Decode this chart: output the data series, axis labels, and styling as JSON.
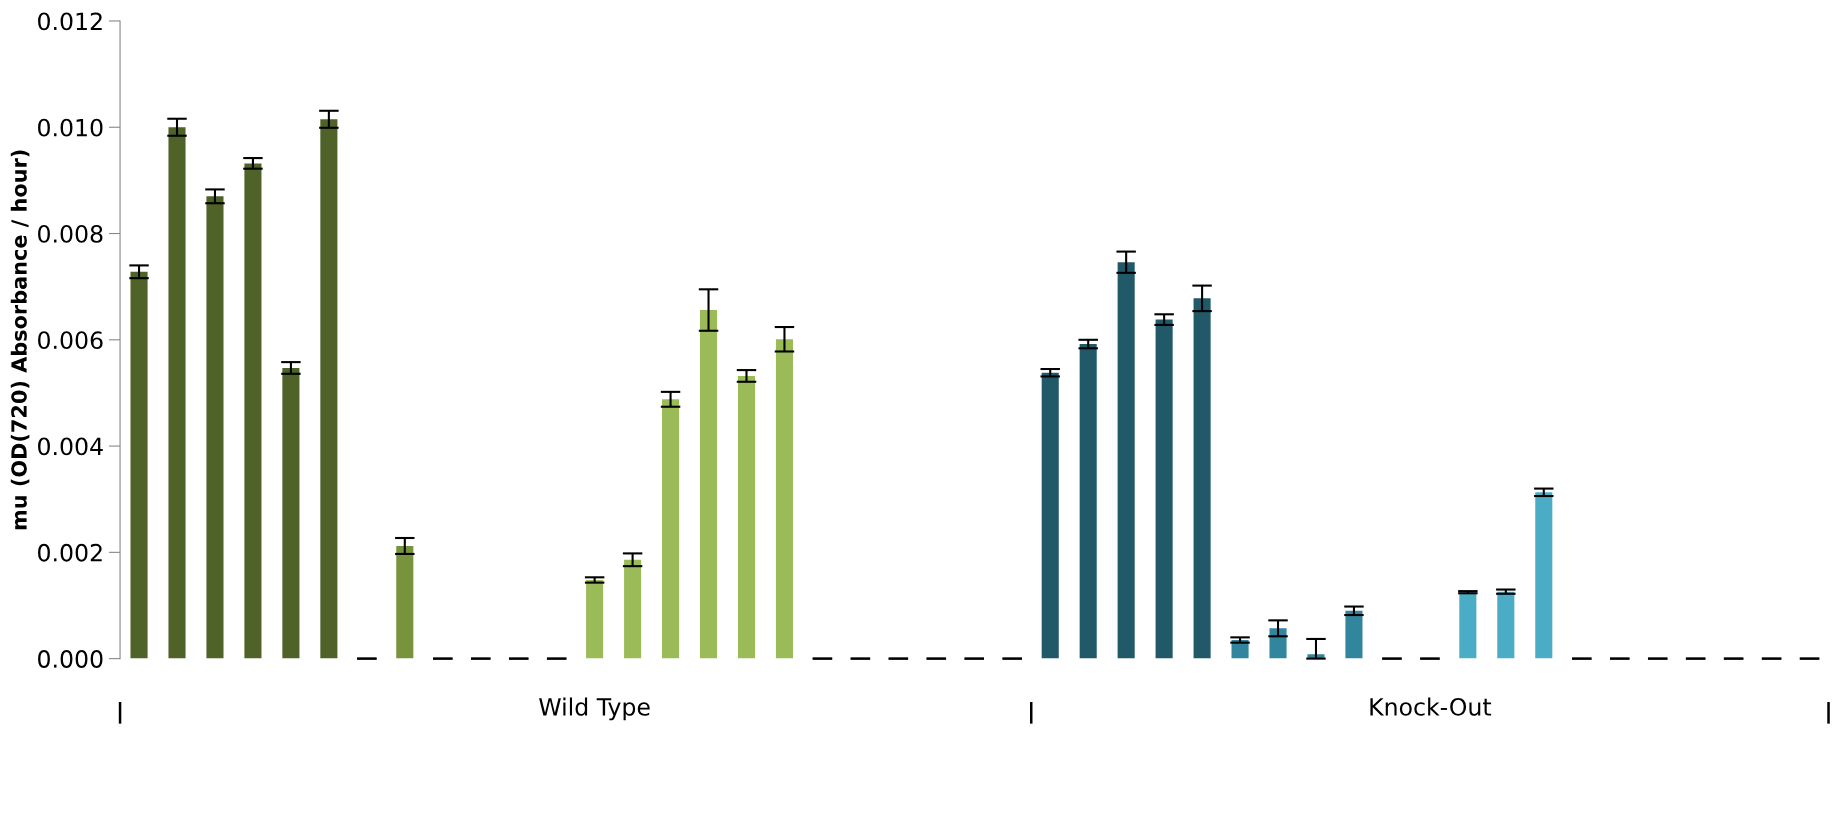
{
  "chart_data": {
    "type": "bar",
    "ylabel": "mu (OD(720) Absorbance / hour)",
    "categories": [
      null,
      null,
      null,
      null,
      null,
      null,
      null,
      null,
      null,
      null,
      null,
      null,
      "Wild Type",
      null,
      null,
      null,
      null,
      null,
      null,
      null,
      null,
      null,
      null,
      null,
      null,
      null,
      null,
      null,
      null,
      null,
      null,
      null,
      null,
      null,
      "Knock-Out",
      null,
      null,
      null,
      null,
      null,
      null,
      null,
      null,
      null,
      null
    ],
    "values": [
      0.00728,
      0.01,
      0.0087,
      0.00932,
      0.00547,
      0.01015,
      0,
      0.00212,
      0,
      0,
      0,
      0,
      0.00148,
      0.00186,
      0.00488,
      0.00656,
      0.00532,
      0.00601,
      0,
      0,
      0,
      0,
      0,
      0,
      0.00538,
      0.00592,
      0.00746,
      0.00638,
      0.00678,
      0.00035,
      0.00057,
      8e-05,
      0.0009,
      0,
      0,
      0.00125,
      0.00126,
      0.00313,
      0,
      0,
      0,
      0,
      0,
      0,
      0
    ],
    "errors": [
      0.00012,
      0.00016,
      0.00013,
      0.0001,
      0.00011,
      0.00016,
      0,
      0.00015,
      0,
      0,
      0,
      0,
      5e-05,
      0.00012,
      0.00014,
      0.00039,
      0.00011,
      0.00023,
      0,
      0,
      0,
      0,
      0,
      0,
      7e-05,
      8e-05,
      0.0002,
      0.0001,
      0.00024,
      5e-05,
      0.00015,
      [
        0,
        0.00037
      ],
      8e-05,
      0,
      0,
      2e-05,
      4e-05,
      7e-05,
      0,
      0,
      0,
      0,
      0,
      0,
      0
    ],
    "colors": [
      "#4f6228",
      "#4f6228",
      "#4f6228",
      "#4f6228",
      "#4f6228",
      "#4f6228",
      "#77933c",
      "#77933c",
      "#77933c",
      "#77933c",
      "#77933c",
      "#77933c",
      "#9bbb59",
      "#9bbb59",
      "#9bbb59",
      "#9bbb59",
      "#9bbb59",
      "#9bbb59",
      "#9bbb59",
      "#9bbb59",
      "#9bbb59",
      "#9bbb59",
      "#9bbb59",
      "#9bbb59",
      "#215968",
      "#215968",
      "#215968",
      "#215968",
      "#215968",
      "#31859c",
      "#31859c",
      "#31859c",
      "#31859c",
      "#31859c",
      "#31859c",
      "#4bacc6",
      "#4bacc6",
      "#4bacc6",
      "#4bacc6",
      "#4bacc6",
      "#4bacc6",
      "#4bacc6",
      "#4bacc6",
      "#4bacc6",
      "#4bacc6"
    ],
    "ylim": [
      0,
      0.012
    ],
    "yticks": [
      {
        "value": 0,
        "label": "0.000"
      },
      {
        "value": 0.002,
        "label": "0.002"
      },
      {
        "value": 0.004,
        "label": "0.004"
      },
      {
        "value": 0.006,
        "label": "0.006"
      },
      {
        "value": 0.008,
        "label": "0.008"
      },
      {
        "value": 0.01,
        "label": "0.010"
      },
      {
        "value": 0.012,
        "label": "0.012"
      }
    ],
    "grid": false
  }
}
